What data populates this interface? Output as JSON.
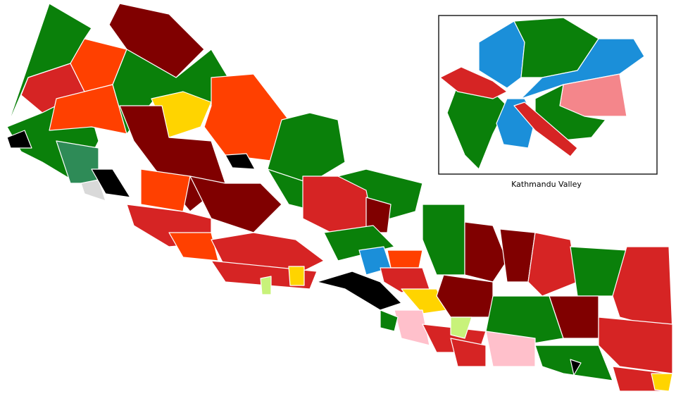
{
  "inset": {
    "label": "Kathmandu Valley"
  }
}
